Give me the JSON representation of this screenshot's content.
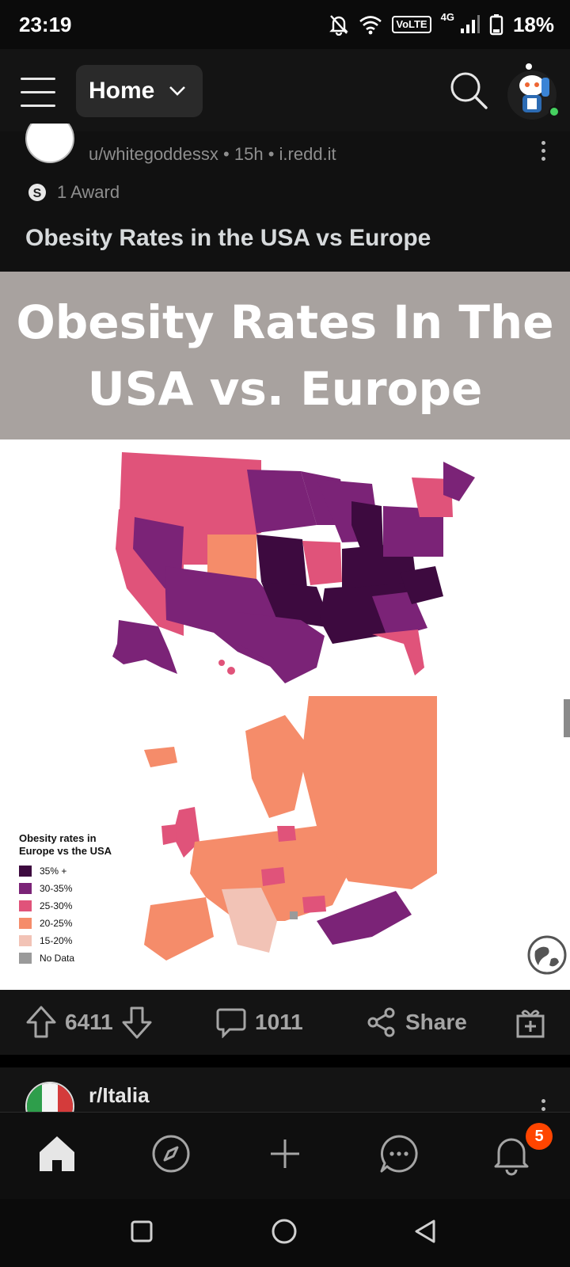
{
  "status_bar": {
    "time": "23:19",
    "volte": "VoLTE",
    "network": "4G",
    "battery": "18%"
  },
  "header": {
    "feed_selector": "Home",
    "icons": [
      "menu-icon",
      "chevron-down-icon",
      "search-icon",
      "avatar"
    ]
  },
  "post": {
    "author": "u/whitegoddessx",
    "age": "15h",
    "domain": "i.redd.it",
    "meta_separator": "•",
    "awards": "1 Award",
    "title": "Obesity Rates in the USA vs Europe",
    "image": {
      "banner_line1": "Obesity Rates In The",
      "banner_line2": "USA vs. Europe",
      "legend": {
        "title": "Obesity rates in Europe vs the USA",
        "items": [
          {
            "label": "35% +",
            "color": "#3d0a3f"
          },
          {
            "label": "30-35%",
            "color": "#7b2377"
          },
          {
            "label": "25-30%",
            "color": "#e0537a"
          },
          {
            "label": "20-25%",
            "color": "#f58c6a"
          },
          {
            "label": "15-20%",
            "color": "#f2c3b6"
          },
          {
            "label": "No Data",
            "color": "#9a9a9a"
          }
        ]
      }
    },
    "upvotes": "6411",
    "comments": "1011",
    "share_label": "Share"
  },
  "next_post": {
    "subreddit": "r/Italia"
  },
  "bottom_nav": {
    "notifications_badge": "5",
    "icons": [
      "home-icon",
      "compass-icon",
      "plus-icon",
      "chat-icon",
      "bell-icon"
    ]
  },
  "system_nav": {
    "icons": [
      "recents-icon",
      "home-circle-icon",
      "back-icon"
    ]
  }
}
